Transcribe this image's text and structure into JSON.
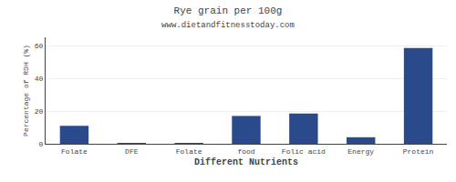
{
  "chart_data": {
    "type": "bar",
    "title": "Rye grain per 100g",
    "subtitle": "www.dietandfitnesstoday.com",
    "xlabel": "Different Nutrients",
    "ylabel": "Percentage of RDH (%)",
    "categories": [
      "Folate",
      "DFE",
      "Folate",
      "food",
      "Folic acid",
      "Energy",
      "Protein"
    ],
    "values": [
      11,
      0.3,
      0.3,
      17,
      18.5,
      4,
      58.5
    ],
    "color": "#2b4a8c",
    "ylim": [
      0,
      65
    ],
    "yticks": [
      0,
      20,
      40,
      60
    ],
    "grid": true
  }
}
